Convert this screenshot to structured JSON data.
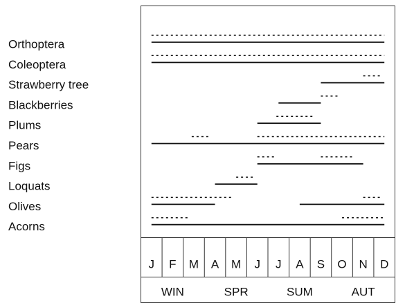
{
  "chart_data": {
    "type": "timeline",
    "categories": [
      "J",
      "F",
      "M",
      "A",
      "M",
      "J",
      "J",
      "A",
      "S",
      "O",
      "N",
      "D"
    ],
    "seasons": [
      "WIN",
      "SPR",
      "SUM",
      "AUT"
    ],
    "xlim": [
      0,
      12
    ],
    "color": "#111111",
    "rows": [
      {
        "label": "Orthoptera",
        "solid": [
          [
            0.5,
            11.5
          ]
        ],
        "dotted": [
          [
            0.5,
            11.5
          ]
        ]
      },
      {
        "label": "Coleoptera",
        "solid": [
          [
            0.5,
            11.5
          ]
        ],
        "dotted": [
          [
            0.5,
            11.5
          ]
        ]
      },
      {
        "label": "Strawberry tree",
        "solid": [
          [
            8.5,
            11.5
          ]
        ],
        "dotted": [
          [
            10.5,
            11.3
          ]
        ]
      },
      {
        "label": "Blackberries",
        "solid": [
          [
            6.5,
            8.5
          ]
        ],
        "dotted": [
          [
            8.5,
            9.4
          ]
        ]
      },
      {
        "label": "Plums",
        "solid": [
          [
            5.5,
            8.5
          ]
        ],
        "dotted": [
          [
            6.4,
            8.1
          ]
        ]
      },
      {
        "label": "Pears",
        "solid": [
          [
            0.5,
            11.5
          ]
        ],
        "dotted": [
          [
            2.4,
            3.2
          ],
          [
            5.5,
            11.5
          ]
        ]
      },
      {
        "label": "Figs",
        "solid": [
          [
            5.5,
            10.5
          ]
        ],
        "dotted": [
          [
            5.5,
            6.3
          ],
          [
            8.5,
            10.0
          ]
        ]
      },
      {
        "label": "Loquats",
        "solid": [
          [
            3.5,
            5.5
          ]
        ],
        "dotted": [
          [
            4.5,
            5.3
          ]
        ]
      },
      {
        "label": "Olives",
        "solid": [
          [
            0.5,
            3.5
          ],
          [
            7.5,
            11.5
          ]
        ],
        "dotted": [
          [
            0.5,
            4.3
          ],
          [
            10.5,
            11.3
          ]
        ]
      },
      {
        "label": "Acorns",
        "solid": [
          [
            0.5,
            11.5
          ]
        ],
        "dotted": [
          [
            0.5,
            2.3
          ],
          [
            9.5,
            11.5
          ]
        ]
      }
    ]
  }
}
